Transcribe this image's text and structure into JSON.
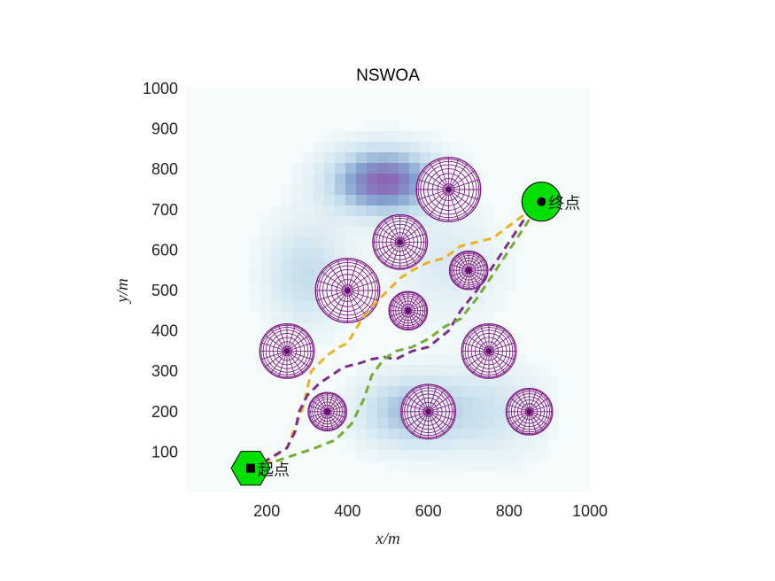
{
  "chart_data": {
    "type": "scatter",
    "title": "NSWOA",
    "xlabel": "x/m",
    "ylabel": "y/m",
    "xlim": [
      0,
      1000
    ],
    "ylim": [
      0,
      1000
    ],
    "xticks": [
      200,
      400,
      600,
      800,
      1000
    ],
    "yticks": [
      100,
      200,
      300,
      400,
      500,
      600,
      700,
      800,
      900,
      1000
    ],
    "grid": false,
    "legend": "none",
    "background_field": {
      "description_colormap": "white-to-blue-to-purple terrain threat field",
      "peaks": [
        {
          "x": 490,
          "y": 770,
          "sx": 90,
          "sy": 55,
          "a": 1.0
        },
        {
          "x": 560,
          "y": 200,
          "sx": 90,
          "sy": 60,
          "a": 0.55
        },
        {
          "x": 300,
          "y": 540,
          "sx": 70,
          "sy": 90,
          "a": 0.35
        },
        {
          "x": 760,
          "y": 200,
          "sx": 90,
          "sy": 80,
          "a": 0.25
        },
        {
          "x": 650,
          "y": 560,
          "sx": 90,
          "sy": 90,
          "a": 0.2
        }
      ]
    },
    "obstacles": [
      {
        "x": 650,
        "y": 750,
        "r": 80
      },
      {
        "x": 530,
        "y": 620,
        "r": 68
      },
      {
        "x": 400,
        "y": 500,
        "r": 80
      },
      {
        "x": 700,
        "y": 550,
        "r": 48
      },
      {
        "x": 550,
        "y": 450,
        "r": 48
      },
      {
        "x": 250,
        "y": 350,
        "r": 68
      },
      {
        "x": 750,
        "y": 350,
        "r": 68
      },
      {
        "x": 350,
        "y": 200,
        "r": 48
      },
      {
        "x": 600,
        "y": 200,
        "r": 68
      },
      {
        "x": 850,
        "y": 200,
        "r": 58
      }
    ],
    "series": [
      {
        "color": "#EDB120",
        "style": "dashed",
        "x": [
          160,
          190,
          250,
          290,
          310,
          350,
          380,
          400,
          430,
          460,
          500,
          530,
          560,
          600,
          640,
          680,
          720,
          760,
          800,
          840,
          880
        ],
        "y": [
          60,
          70,
          110,
          210,
          300,
          340,
          360,
          370,
          420,
          460,
          500,
          530,
          550,
          570,
          580,
          610,
          620,
          630,
          660,
          690,
          720
        ]
      },
      {
        "color": "#7E2F8E",
        "style": "dashed",
        "x": [
          160,
          200,
          250,
          270,
          280,
          300,
          330,
          360,
          390,
          430,
          460,
          490,
          520,
          560,
          600,
          650,
          680,
          720,
          760,
          800,
          840,
          880
        ],
        "y": [
          60,
          80,
          110,
          150,
          200,
          240,
          270,
          290,
          310,
          320,
          330,
          335,
          330,
          350,
          360,
          400,
          450,
          500,
          560,
          620,
          680,
          720
        ]
      },
      {
        "color": "#77AC30",
        "style": "dashed",
        "x": [
          160,
          200,
          260,
          320,
          370,
          410,
          440,
          460,
          490,
          520,
          560,
          600,
          640,
          680,
          720,
          760,
          800,
          840,
          880
        ],
        "y": [
          60,
          70,
          90,
          110,
          130,
          170,
          230,
          290,
          330,
          350,
          360,
          380,
          410,
          430,
          480,
          540,
          600,
          660,
          720
        ]
      }
    ],
    "start": {
      "x": 160,
      "y": 60,
      "label": "起点",
      "marker": "hexagon",
      "color": "#00E000"
    },
    "goal": {
      "x": 880,
      "y": 720,
      "label": "终点",
      "marker": "circle",
      "color": "#00E000"
    }
  }
}
